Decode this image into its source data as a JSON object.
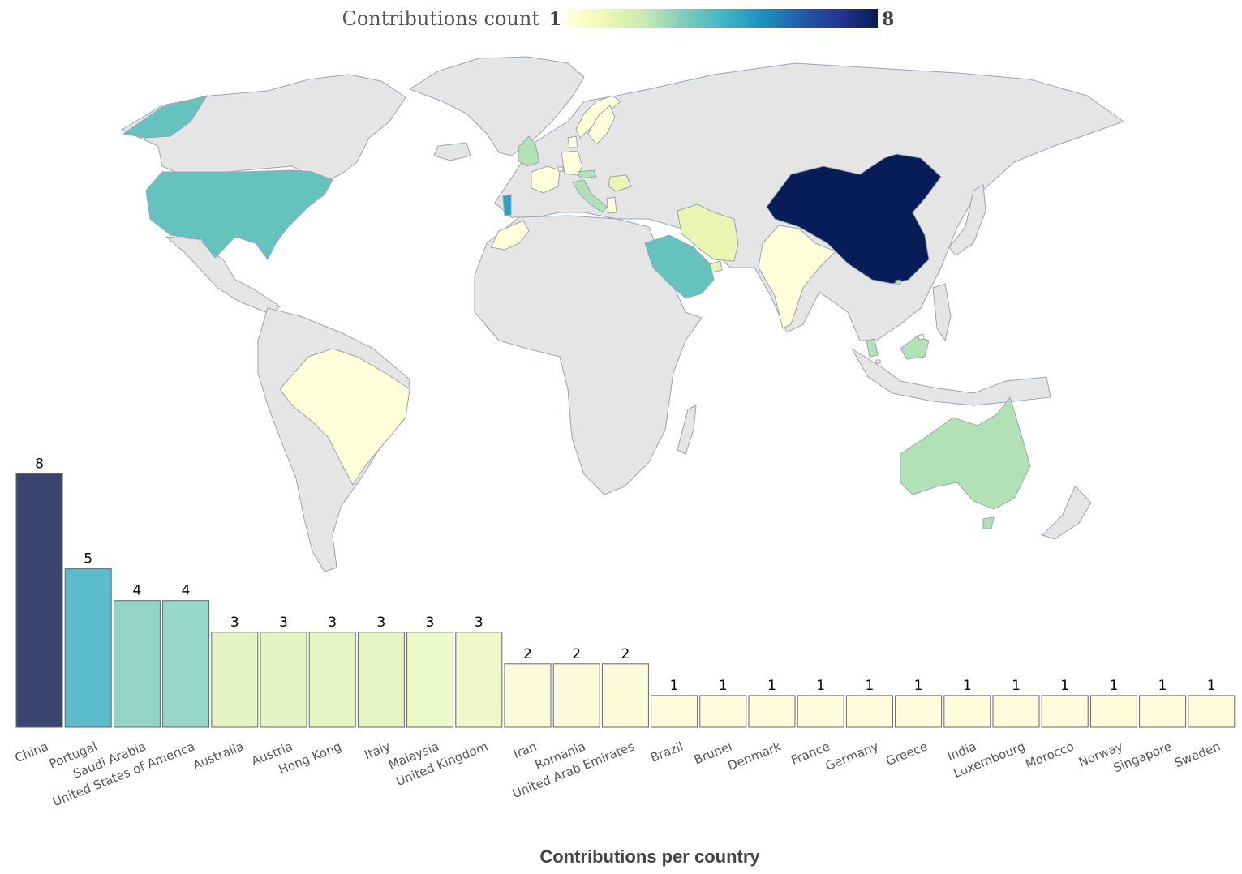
{
  "colors": {
    "scale": [
      "#ffffd9",
      "#edf8b1",
      "#c7e9b4",
      "#7fcdbb",
      "#41b6c4",
      "#1d91c0",
      "#225ea8",
      "#253494",
      "#081d58"
    ],
    "land": "#e5e5e5",
    "border": "#9aa3b5",
    "bar_stroke": "#666666"
  },
  "icons": [
    "world-map"
  ],
  "chart_data": [
    {
      "type": "choropleth",
      "colorbar": {
        "title": "Contributions count",
        "min": 1,
        "max": 8,
        "min_label": "1",
        "max_label": "8",
        "placement": "top-center",
        "scale": "YlGnBu"
      },
      "regions": [
        {
          "name": "China",
          "value": 8
        },
        {
          "name": "Portugal",
          "value": 5
        },
        {
          "name": "Saudi Arabia",
          "value": 4
        },
        {
          "name": "United States of America",
          "value": 4
        },
        {
          "name": "Australia",
          "value": 3
        },
        {
          "name": "Austria",
          "value": 3
        },
        {
          "name": "Hong Kong",
          "value": 3
        },
        {
          "name": "Italy",
          "value": 3
        },
        {
          "name": "Malaysia",
          "value": 3
        },
        {
          "name": "United Kingdom",
          "value": 3
        },
        {
          "name": "Iran",
          "value": 2
        },
        {
          "name": "Romania",
          "value": 2
        },
        {
          "name": "United Arab Emirates",
          "value": 2
        },
        {
          "name": "Brazil",
          "value": 1
        },
        {
          "name": "Brunei",
          "value": 1
        },
        {
          "name": "Denmark",
          "value": 1
        },
        {
          "name": "France",
          "value": 1
        },
        {
          "name": "Germany",
          "value": 1
        },
        {
          "name": "Greece",
          "value": 1
        },
        {
          "name": "India",
          "value": 1
        },
        {
          "name": "Luxembourg",
          "value": 1
        },
        {
          "name": "Morocco",
          "value": 1
        },
        {
          "name": "Norway",
          "value": 1
        },
        {
          "name": "Singapore",
          "value": 1
        },
        {
          "name": "Sweden",
          "value": 1
        }
      ]
    },
    {
      "type": "bar",
      "xlabel": "Contributions per country",
      "ylabel": "",
      "ylim": [
        0,
        8.7
      ],
      "grid": false,
      "data_labels": true,
      "categories": [
        "China",
        "Portugal",
        "Saudi Arabia",
        "United States of America",
        "Australia",
        "Austria",
        "Hong Kong",
        "Italy",
        "Malaysia",
        "United Kingdom",
        "Iran",
        "Romania",
        "United Arab Emirates",
        "Brazil",
        "Brunei",
        "Denmark",
        "France",
        "Germany",
        "Greece",
        "India",
        "Luxembourg",
        "Morocco",
        "Norway",
        "Singapore",
        "Sweden"
      ],
      "values": [
        8,
        5,
        4,
        4,
        3,
        3,
        3,
        3,
        3,
        3,
        2,
        2,
        2,
        1,
        1,
        1,
        1,
        1,
        1,
        1,
        1,
        1,
        1,
        1,
        1
      ],
      "bar_colors": [
        "#3a4672",
        "#5dbccb",
        "#92d5c5",
        "#96d7c6",
        "#e5f3c3",
        "#e5f3c3",
        "#e6f4c4",
        "#e6f4c4",
        "#edf8c8",
        "#eef8c8",
        "#f9fbd9",
        "#f9fbd9",
        "#f9fbd9",
        "#fffcdc",
        "#fffcdc",
        "#fffcdc",
        "#fffcdc",
        "#fffcdc",
        "#fffcdc",
        "#fffcdc",
        "#fffcdc",
        "#fffcdc",
        "#fffcdc",
        "#fffcdc",
        "#fffcdc"
      ]
    }
  ]
}
